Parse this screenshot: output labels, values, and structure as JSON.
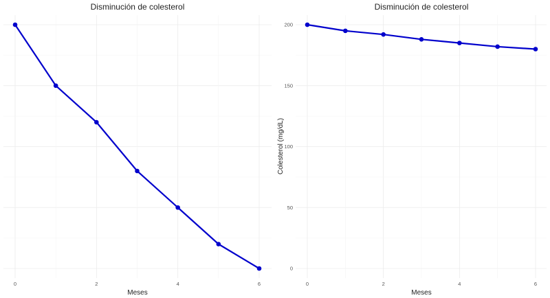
{
  "chart_data": [
    {
      "type": "line",
      "title": "Disminución de colesterol",
      "xlabel": "Meses",
      "ylabel": "",
      "x": [
        0,
        1,
        2,
        3,
        4,
        5,
        6
      ],
      "series": [
        {
          "values": [
            200,
            195,
            192,
            188,
            185,
            182,
            180
          ]
        }
      ],
      "xlim": [
        0,
        6
      ],
      "ylim": [
        180,
        200
      ],
      "xticks": [
        "0",
        "2",
        "4",
        "6"
      ],
      "yticks": [],
      "y_tick_labels_shown": false,
      "grid": true,
      "line_color": "#0000cc"
    },
    {
      "type": "line",
      "title": "Disminución de colesterol",
      "xlabel": "Meses",
      "ylabel": "Colesterol (mg/dL)",
      "x": [
        0,
        1,
        2,
        3,
        4,
        5,
        6
      ],
      "series": [
        {
          "values": [
            200,
            195,
            192,
            188,
            185,
            182,
            180
          ]
        }
      ],
      "xlim": [
        0,
        6
      ],
      "ylim": [
        0,
        200
      ],
      "xticks": [
        "0",
        "2",
        "4",
        "6"
      ],
      "yticks": [
        "0",
        "50",
        "100",
        "150",
        "200"
      ],
      "grid": true,
      "line_color": "#0000cc"
    }
  ]
}
